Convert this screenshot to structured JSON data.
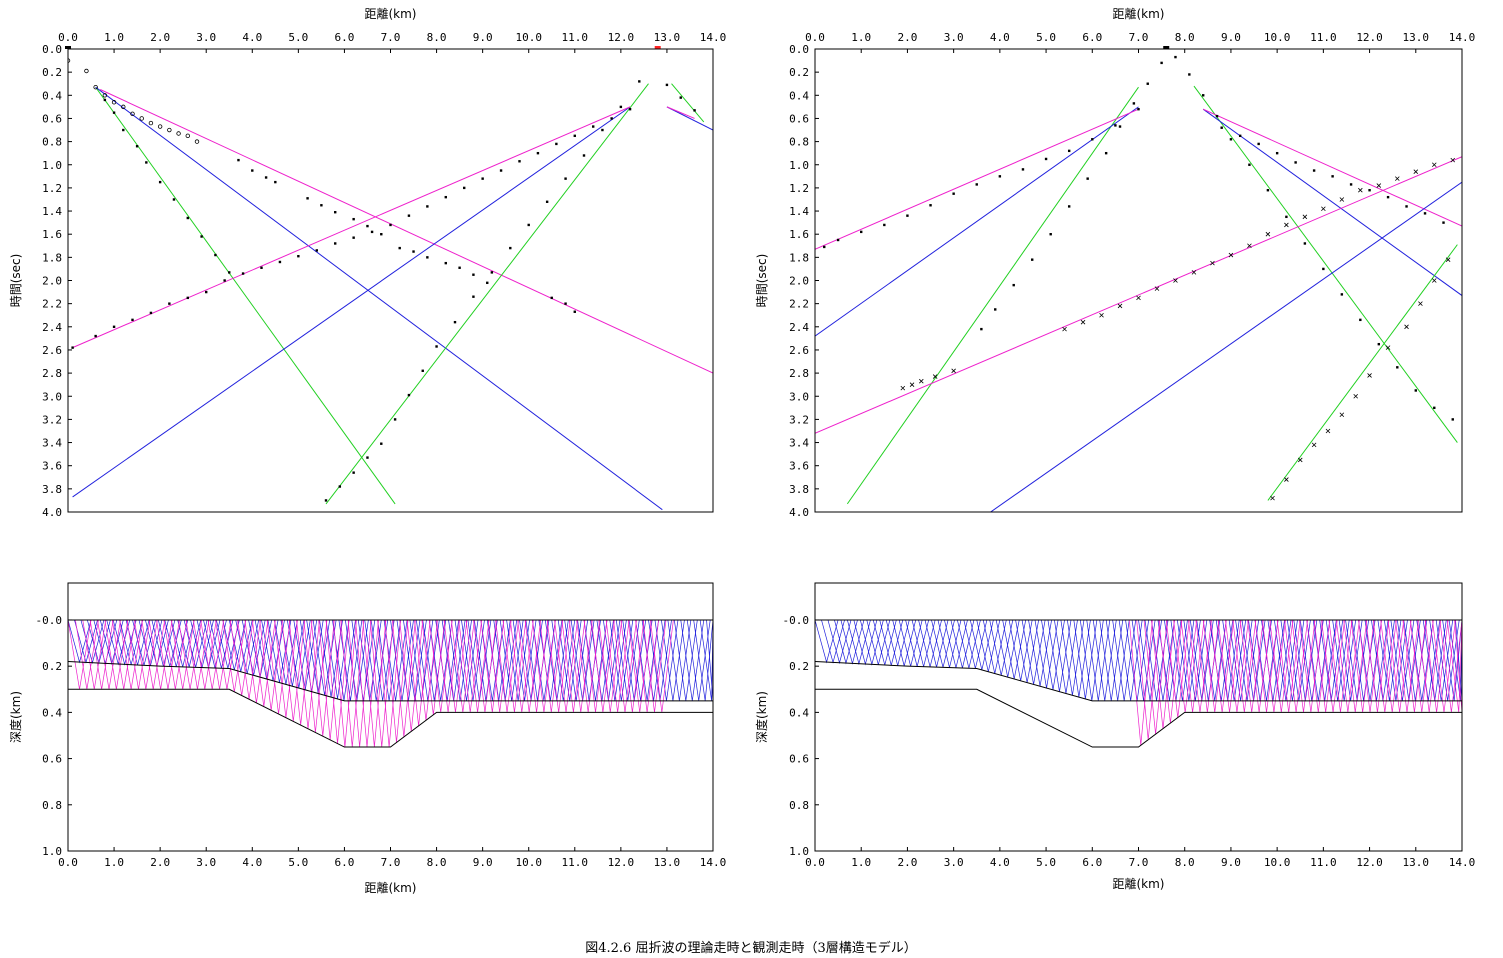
{
  "caption": "図4.2.6 屈折波の理論走時と観測走時（3層構造モデル）",
  "colors": {
    "green": "#22d022",
    "blue": "#2222dd",
    "magenta": "#ee22cc",
    "red": "#ff2222",
    "black": "#000000"
  },
  "chart_data": [
    {
      "type": "line",
      "panel": "upper-left",
      "xlabel": "距離(km)",
      "ylabel": "時間(sec)",
      "xlim": [
        0,
        14
      ],
      "ylim": [
        0,
        4
      ],
      "xticks": [
        "0.0",
        "1.0",
        "2.0",
        "3.0",
        "4.0",
        "5.0",
        "6.0",
        "7.0",
        "8.0",
        "9.0",
        "10.0",
        "11.0",
        "12.0",
        "13.0",
        "14.0"
      ],
      "yticks": [
        "0.0",
        "0.2",
        "0.4",
        "0.6",
        "0.8",
        "1.0",
        "1.2",
        "1.4",
        "1.6",
        "1.8",
        "2.0",
        "2.2",
        "2.4",
        "2.6",
        "2.8",
        "3.0",
        "3.2",
        "3.4",
        "3.6",
        "3.8",
        "4.0"
      ],
      "shots": [
        0.0,
        12.8
      ],
      "series": [
        {
          "color": "green",
          "x": [
            0.6,
            7.1
          ],
          "y": [
            0.33,
            3.93
          ]
        },
        {
          "color": "blue",
          "x": [
            0.6,
            12.9
          ],
          "y": [
            0.33,
            3.98
          ]
        },
        {
          "color": "magenta",
          "x": [
            0.7,
            14.0
          ],
          "y": [
            0.35,
            2.8
          ]
        },
        {
          "color": "green",
          "x": [
            12.6,
            5.6
          ],
          "y": [
            0.3,
            3.93
          ]
        },
        {
          "color": "blue",
          "x": [
            12.2,
            0.1
          ],
          "y": [
            0.5,
            3.87
          ]
        },
        {
          "color": "magenta",
          "x": [
            12.2,
            0.1
          ],
          "y": [
            0.5,
            2.58
          ]
        },
        {
          "color": "green",
          "x": [
            13.1,
            13.8
          ],
          "y": [
            0.3,
            0.63
          ]
        },
        {
          "color": "blue",
          "x": [
            13.0,
            14.0
          ],
          "y": [
            0.5,
            0.7
          ]
        },
        {
          "color": "magenta",
          "x": [
            13.0,
            13.6
          ],
          "y": [
            0.5,
            0.6
          ]
        }
      ],
      "observed": [
        {
          "marker": "circle",
          "x": [
            0.0,
            0.4,
            0.6,
            0.8,
            1.0,
            1.2,
            1.4,
            1.6,
            1.8,
            2.0,
            2.2,
            2.4,
            2.6,
            2.8
          ],
          "y": [
            0.1,
            0.19,
            0.33,
            0.4,
            0.46,
            0.5,
            0.56,
            0.6,
            0.64,
            0.67,
            0.7,
            0.73,
            0.75,
            0.8
          ]
        },
        {
          "marker": "dot",
          "x": [
            0.8,
            1.0,
            1.2,
            1.5,
            1.7,
            2.0,
            2.3,
            2.6,
            2.9,
            3.2,
            3.5
          ],
          "y": [
            0.44,
            0.55,
            0.7,
            0.84,
            0.98,
            1.15,
            1.3,
            1.46,
            1.62,
            1.78,
            1.93
          ]
        },
        {
          "marker": "dot",
          "x": [
            3.7,
            4.0,
            4.3,
            4.5,
            5.2,
            5.5,
            5.8,
            6.2,
            6.5,
            6.8,
            7.2,
            7.5,
            7.8,
            8.2,
            8.5,
            8.8,
            9.1,
            10.5,
            10.8,
            11.0
          ],
          "y": [
            0.96,
            1.05,
            1.11,
            1.15,
            1.29,
            1.35,
            1.41,
            1.47,
            1.53,
            1.6,
            1.72,
            1.75,
            1.8,
            1.85,
            1.89,
            1.95,
            2.02,
            2.15,
            2.2,
            2.27
          ]
        },
        {
          "marker": "dot",
          "x": [
            12.2,
            11.8,
            11.4,
            11.0,
            10.6,
            10.2,
            9.8,
            9.4,
            9.0,
            8.6,
            8.2,
            7.8,
            7.4,
            7.0,
            6.6,
            6.2,
            5.8,
            5.4,
            5.0,
            4.6,
            4.2,
            3.8,
            3.4,
            3.0,
            2.6,
            2.2,
            1.8,
            1.4,
            1.0,
            0.6,
            0.1
          ],
          "y": [
            0.52,
            0.6,
            0.67,
            0.75,
            0.82,
            0.9,
            0.97,
            1.05,
            1.12,
            1.2,
            1.28,
            1.36,
            1.44,
            1.52,
            1.58,
            1.63,
            1.68,
            1.74,
            1.79,
            1.84,
            1.89,
            1.94,
            2.0,
            2.1,
            2.15,
            2.2,
            2.28,
            2.34,
            2.4,
            2.48,
            2.58
          ]
        },
        {
          "marker": "dot",
          "x": [
            12.4,
            12.0,
            11.6,
            11.2,
            10.8,
            10.4,
            10.0,
            9.6,
            9.2,
            8.8,
            8.4,
            8.0,
            7.7,
            7.4,
            7.1,
            6.8,
            6.5,
            6.2,
            5.9,
            5.6
          ],
          "y": [
            0.28,
            0.5,
            0.7,
            0.92,
            1.12,
            1.32,
            1.52,
            1.72,
            1.93,
            2.14,
            2.36,
            2.57,
            2.78,
            2.99,
            3.2,
            3.41,
            3.53,
            3.66,
            3.78,
            3.9
          ]
        },
        {
          "marker": "dot",
          "x": [
            13.0,
            13.3,
            13.6
          ],
          "y": [
            0.31,
            0.42,
            0.53
          ]
        }
      ]
    },
    {
      "type": "line",
      "panel": "upper-right",
      "xlabel": "距離(km)",
      "ylabel": "時間(sec)",
      "xlim": [
        0,
        14
      ],
      "ylim": [
        0,
        4
      ],
      "xticks": [
        "0.0",
        "1.0",
        "2.0",
        "3.0",
        "4.0",
        "5.0",
        "6.0",
        "7.0",
        "8.0",
        "9.0",
        "10.0",
        "11.0",
        "12.0",
        "13.0",
        "14.0"
      ],
      "yticks": [
        "0.0",
        "0.2",
        "0.4",
        "0.6",
        "0.8",
        "1.0",
        "1.2",
        "1.4",
        "1.6",
        "1.8",
        "2.0",
        "2.2",
        "2.4",
        "2.6",
        "2.8",
        "3.0",
        "3.2",
        "3.4",
        "3.6",
        "3.8",
        "4.0"
      ],
      "shots": [
        7.6
      ],
      "series": [
        {
          "color": "green",
          "x": [
            7.0,
            0.7
          ],
          "y": [
            0.33,
            3.93
          ]
        },
        {
          "color": "blue",
          "x": [
            7.0,
            0.0
          ],
          "y": [
            0.5,
            2.48
          ]
        },
        {
          "color": "magenta",
          "x": [
            7.0,
            0.0
          ],
          "y": [
            0.52,
            1.73
          ]
        },
        {
          "color": "green",
          "x": [
            8.2,
            13.9
          ],
          "y": [
            0.32,
            3.4
          ]
        },
        {
          "color": "blue",
          "x": [
            8.4,
            14.0
          ],
          "y": [
            0.52,
            2.13
          ]
        },
        {
          "color": "magenta",
          "x": [
            8.4,
            14.0
          ],
          "y": [
            0.52,
            1.53
          ]
        },
        {
          "color": "magenta",
          "x": [
            0.0,
            14.0
          ],
          "y": [
            3.32,
            0.93
          ]
        },
        {
          "color": "blue",
          "x": [
            3.8,
            14.0
          ],
          "y": [
            4.0,
            1.15
          ]
        },
        {
          "color": "green",
          "x": [
            9.8,
            13.9
          ],
          "y": [
            3.9,
            1.69
          ]
        }
      ],
      "observed": [
        {
          "marker": "dot",
          "x": [
            7.5,
            7.2,
            6.9,
            6.6,
            6.3,
            5.9,
            5.5,
            5.1,
            4.7,
            4.3,
            3.9,
            3.6
          ],
          "y": [
            0.12,
            0.3,
            0.47,
            0.67,
            0.9,
            1.12,
            1.36,
            1.6,
            1.82,
            2.04,
            2.25,
            2.42
          ]
        },
        {
          "marker": "dot",
          "x": [
            7.0,
            6.5,
            6.0,
            5.5,
            5.0,
            4.5,
            4.0,
            3.5,
            3.0,
            2.5,
            2.0,
            1.5,
            1.0,
            0.5,
            0.2
          ],
          "y": [
            0.52,
            0.66,
            0.78,
            0.88,
            0.95,
            1.04,
            1.1,
            1.17,
            1.25,
            1.35,
            1.44,
            1.52,
            1.58,
            1.65,
            1.71
          ]
        },
        {
          "marker": "dot",
          "x": [
            7.8,
            8.1,
            8.4,
            8.7,
            9.0,
            9.4,
            9.8,
            10.2,
            10.6,
            11.0,
            11.4,
            11.8,
            12.2,
            12.6,
            13.0,
            13.4,
            13.8
          ],
          "y": [
            0.07,
            0.22,
            0.4,
            0.58,
            0.78,
            1.0,
            1.22,
            1.45,
            1.68,
            1.9,
            2.12,
            2.34,
            2.55,
            2.75,
            2.95,
            3.1,
            3.2
          ]
        },
        {
          "marker": "dot",
          "x": [
            8.8,
            9.2,
            9.6,
            10.0,
            10.4,
            10.8,
            11.2,
            11.6,
            12.0,
            12.4,
            12.8,
            13.2,
            13.6
          ],
          "y": [
            0.68,
            0.75,
            0.82,
            0.9,
            0.98,
            1.05,
            1.1,
            1.17,
            1.22,
            1.28,
            1.36,
            1.42,
            1.5
          ]
        },
        {
          "marker": "cross",
          "x": [
            1.9,
            2.1,
            2.3,
            2.6,
            3.0,
            5.4,
            5.8,
            6.2,
            6.6,
            7.0,
            7.4,
            7.8,
            8.2,
            8.6,
            9.0,
            9.4,
            9.8,
            10.2,
            10.6,
            11.0,
            11.4,
            11.8,
            12.2,
            12.6,
            13.0,
            13.4,
            13.8
          ],
          "y": [
            2.93,
            2.9,
            2.87,
            2.83,
            2.78,
            2.42,
            2.36,
            2.3,
            2.22,
            2.15,
            2.07,
            2.0,
            1.93,
            1.85,
            1.78,
            1.7,
            1.6,
            1.52,
            1.45,
            1.38,
            1.3,
            1.22,
            1.18,
            1.12,
            1.06,
            1.0,
            0.96
          ]
        },
        {
          "marker": "cross",
          "x": [
            9.9,
            10.2,
            10.5,
            10.8,
            11.1,
            11.4,
            11.7,
            12.0,
            12.4,
            12.8,
            13.1,
            13.4,
            13.7
          ],
          "y": [
            3.88,
            3.72,
            3.55,
            3.42,
            3.3,
            3.16,
            3.0,
            2.82,
            2.58,
            2.4,
            2.2,
            2.0,
            1.82
          ]
        }
      ]
    },
    {
      "type": "line",
      "panel": "lower-left",
      "xlabel": "距離(km)",
      "ylabel": "深度(km)",
      "xlim": [
        0,
        14
      ],
      "ylim": [
        -0.16,
        1.0
      ],
      "xticks": [
        "0.0",
        "1.0",
        "2.0",
        "3.0",
        "4.0",
        "5.0",
        "6.0",
        "7.0",
        "8.0",
        "9.0",
        "10.0",
        "11.0",
        "12.0",
        "13.0",
        "14.0"
      ],
      "yticks": [
        "-0.0",
        "0.2",
        "0.4",
        "0.6",
        "0.8",
        "1.0"
      ],
      "layers": [
        {
          "name": "surface",
          "x": [
            0,
            14
          ],
          "y": [
            0.0,
            0.0
          ]
        },
        {
          "name": "boundary-1",
          "x": [
            0,
            2.0,
            3.5,
            6.0,
            14.0
          ],
          "y": [
            0.18,
            0.2,
            0.21,
            0.35,
            0.35
          ]
        },
        {
          "name": "boundary-2",
          "x": [
            0,
            3.5,
            6.0,
            7.0,
            8.0,
            14.0
          ],
          "y": [
            0.3,
            0.3,
            0.55,
            0.55,
            0.4,
            0.4
          ]
        }
      ],
      "rays": [
        {
          "color": "blue",
          "from": [
            0.0,
            14.0
          ],
          "depth": 0.19
        },
        {
          "color": "magenta",
          "from": [
            0.0,
            12.8
          ],
          "depth": 0.4
        }
      ]
    },
    {
      "type": "line",
      "panel": "lower-right",
      "xlabel": "距離(km)",
      "ylabel": "深度(km)",
      "xlim": [
        0,
        14
      ],
      "ylim": [
        -0.16,
        1.0
      ],
      "xticks": [
        "0.0",
        "1.0",
        "2.0",
        "3.0",
        "4.0",
        "5.0",
        "6.0",
        "7.0",
        "8.0",
        "9.0",
        "10.0",
        "11.0",
        "12.0",
        "13.0",
        "14.0"
      ],
      "yticks": [
        "-0.0",
        "0.2",
        "0.4",
        "0.6",
        "0.8",
        "1.0"
      ],
      "layers": [
        {
          "name": "surface",
          "x": [
            0,
            14
          ],
          "y": [
            0.0,
            0.0
          ]
        },
        {
          "name": "boundary-1",
          "x": [
            0,
            2.0,
            3.5,
            6.0,
            14.0
          ],
          "y": [
            0.18,
            0.2,
            0.21,
            0.35,
            0.35
          ]
        },
        {
          "name": "boundary-2",
          "x": [
            0,
            3.5,
            6.0,
            7.0,
            8.0,
            14.0
          ],
          "y": [
            0.3,
            0.3,
            0.55,
            0.55,
            0.4,
            0.4
          ]
        }
      ],
      "rays": [
        {
          "color": "blue",
          "from": [
            0.0,
            14.0
          ],
          "depth": 0.19
        },
        {
          "color": "magenta",
          "from": [
            6.8,
            14.0
          ],
          "depth": 0.42
        }
      ]
    }
  ]
}
